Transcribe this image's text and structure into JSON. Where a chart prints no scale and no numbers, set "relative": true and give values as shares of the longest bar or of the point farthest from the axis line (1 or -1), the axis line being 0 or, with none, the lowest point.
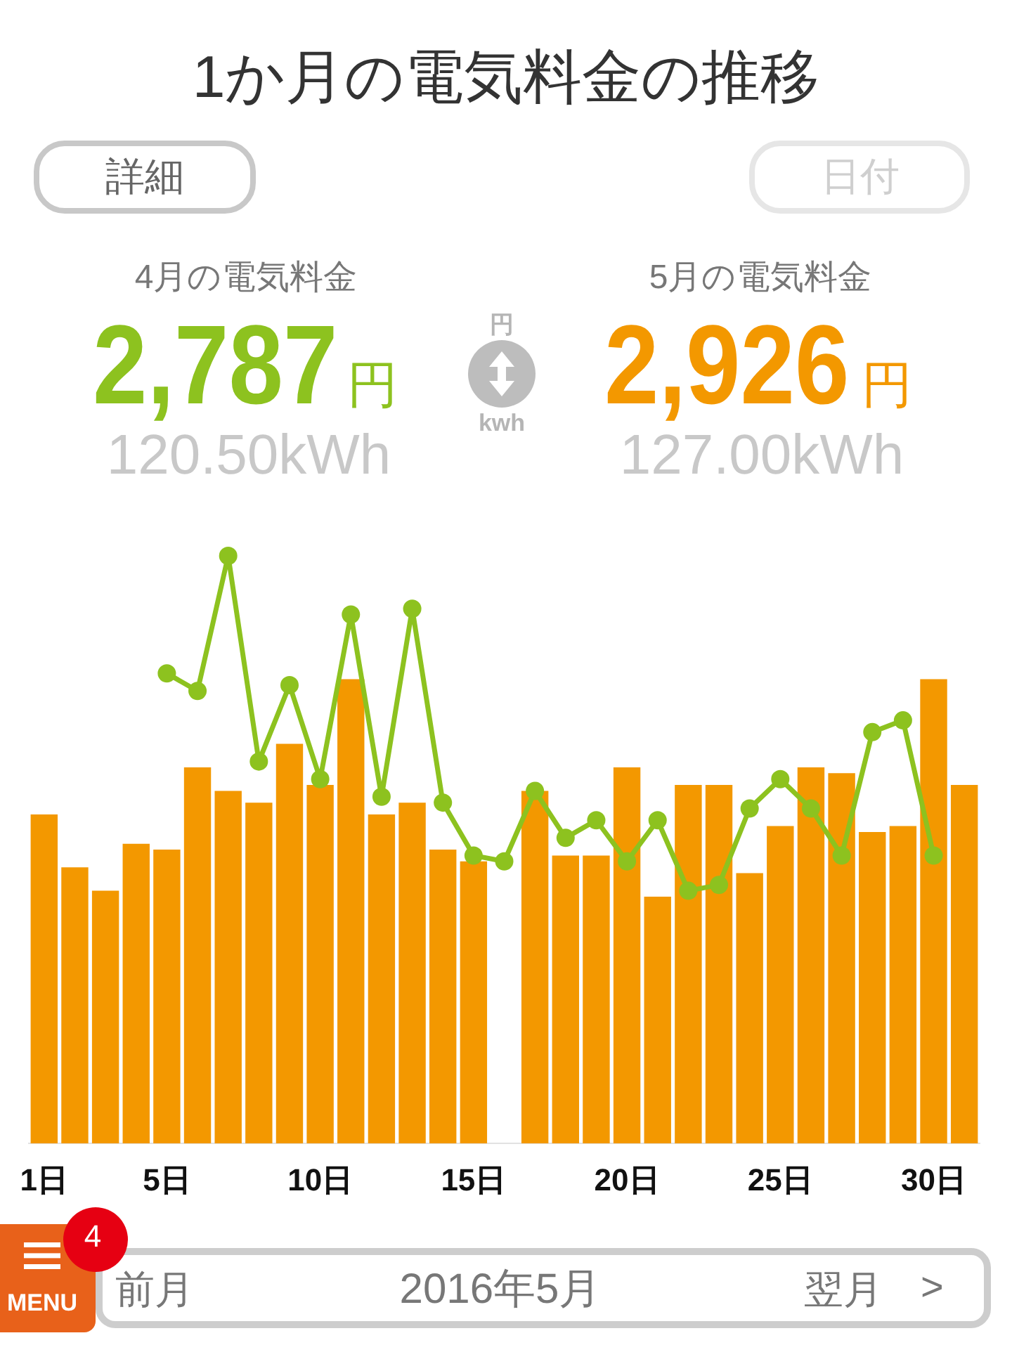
{
  "chart_data": {
    "type": "bar",
    "relative": true,
    "title": "1か月の電気料金の推移",
    "categories": [
      "1日",
      null,
      null,
      null,
      "5日",
      null,
      null,
      null,
      null,
      "10日",
      null,
      null,
      null,
      null,
      "15日",
      null,
      null,
      null,
      null,
      "20日",
      null,
      null,
      null,
      null,
      "25日",
      null,
      null,
      null,
      null,
      "30日",
      null
    ],
    "series": [
      {
        "color": "#f39800",
        "values": [
          0.56,
          0.47,
          0.43,
          0.51,
          0.5,
          0.64,
          0.6,
          0.58,
          0.68,
          0.61,
          0.79,
          0.56,
          0.58,
          0.5,
          0.48,
          null,
          0.6,
          0.49,
          0.49,
          0.64,
          0.42,
          0.61,
          0.61,
          0.46,
          0.54,
          0.64,
          0.63,
          0.53,
          0.54,
          0.79,
          0.61
        ]
      },
      {
        "type": "line",
        "color": "#8dc21f",
        "values": [
          null,
          null,
          null,
          null,
          0.8,
          0.77,
          1,
          0.65,
          0.78,
          0.62,
          0.9,
          0.59,
          0.91,
          0.58,
          0.49,
          0.48,
          0.6,
          0.52,
          0.55,
          0.48,
          0.55,
          0.43,
          0.44,
          0.57,
          0.62,
          0.57,
          0.49,
          0.7,
          0.72,
          0.49,
          null
        ]
      }
    ],
    "marker": "circle",
    "line_style": "solid",
    "annotations": [
      "詳細",
      "日付",
      "4月の電気料金",
      "2,787",
      "円",
      "120.50kWh",
      "円",
      "kwh",
      "5月の電気料金",
      "2,926",
      "円",
      "127.00kWh",
      "MENU",
      "4",
      "前月",
      "2016年5月",
      "翌月",
      ">"
    ]
  }
}
